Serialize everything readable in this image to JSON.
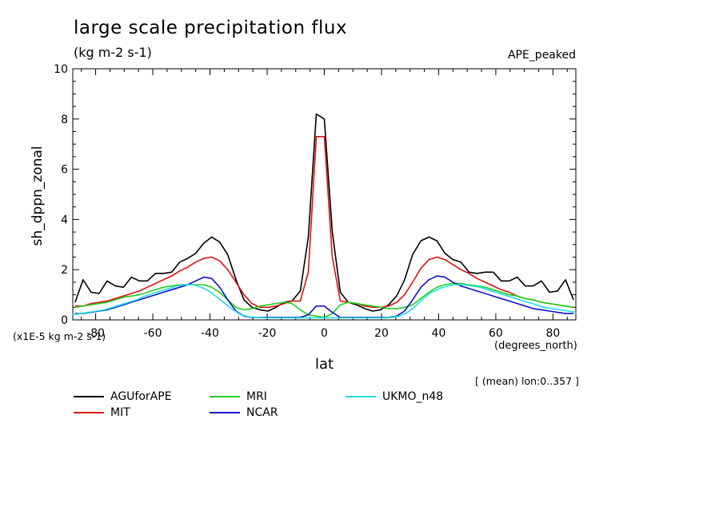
{
  "chart_data": {
    "type": "line",
    "title": "large scale precipitation flux",
    "units": "(kg m-2 s-1)",
    "run_label": "APE_peaked",
    "xlabel": "lat",
    "x_unit": "(degrees_north)",
    "ylabel": "sh_dppn_zonal",
    "y_scale_note": "(x1E-5 kg m-2 s-1)",
    "mean_note": "[ (mean) lon:0..357 ]",
    "xlim": [
      -88,
      88
    ],
    "ylim": [
      0,
      10
    ],
    "x_ticks": [
      -80,
      -60,
      -40,
      -20,
      0,
      20,
      40,
      60,
      80
    ],
    "x_tick_labels": [
      "-80",
      "-60",
      "-40",
      "-20",
      "0",
      "20",
      "40",
      "60",
      "80"
    ],
    "y_ticks": [
      0,
      2,
      4,
      6,
      8,
      10
    ],
    "y_tick_labels": [
      "0",
      "2",
      "4",
      "6",
      "8",
      "10"
    ],
    "legend_position": "bottom",
    "series": [
      {
        "name": "AGUforAPE",
        "color": "#000000",
        "x": [
          -87.2,
          -84.4,
          -81.6,
          -78.8,
          -76.0,
          -73.1,
          -70.3,
          -67.5,
          -64.7,
          -61.9,
          -59.1,
          -56.3,
          -53.4,
          -50.6,
          -47.8,
          -45.0,
          -42.2,
          -39.4,
          -36.6,
          -33.8,
          -30.9,
          -28.1,
          -25.3,
          -22.5,
          -19.7,
          -16.9,
          -14.1,
          -11.3,
          -8.4,
          -5.6,
          -2.8,
          0.0,
          2.8,
          5.6,
          8.4,
          11.3,
          14.1,
          16.9,
          19.7,
          22.5,
          25.3,
          28.1,
          30.9,
          33.8,
          36.6,
          39.4,
          42.2,
          45.0,
          47.8,
          50.6,
          53.4,
          56.3,
          59.1,
          61.9,
          64.7,
          67.5,
          70.3,
          73.1,
          76.0,
          78.8,
          81.6,
          84.4,
          87.2
        ],
        "values": [
          0.7,
          1.6,
          1.1,
          1.05,
          1.55,
          1.35,
          1.3,
          1.7,
          1.55,
          1.55,
          1.85,
          1.85,
          1.9,
          2.3,
          2.45,
          2.65,
          3.05,
          3.3,
          3.1,
          2.6,
          1.6,
          0.8,
          0.5,
          0.4,
          0.35,
          0.5,
          0.7,
          0.75,
          1.15,
          3.3,
          8.2,
          8.0,
          3.5,
          1.1,
          0.7,
          0.6,
          0.45,
          0.35,
          0.4,
          0.6,
          0.95,
          1.6,
          2.6,
          3.15,
          3.3,
          3.15,
          2.65,
          2.4,
          2.3,
          1.9,
          1.85,
          1.9,
          1.9,
          1.55,
          1.55,
          1.7,
          1.35,
          1.35,
          1.55,
          1.1,
          1.15,
          1.6,
          0.8
        ]
      },
      {
        "name": "MIT",
        "color": "#e01010",
        "x": [
          -87.2,
          -84.4,
          -81.6,
          -78.8,
          -76.0,
          -73.1,
          -70.3,
          -67.5,
          -64.7,
          -61.9,
          -59.1,
          -56.3,
          -53.4,
          -50.6,
          -47.8,
          -45.0,
          -42.2,
          -39.4,
          -36.6,
          -33.8,
          -30.9,
          -28.1,
          -25.3,
          -22.5,
          -19.7,
          -16.9,
          -14.1,
          -11.3,
          -8.4,
          -5.6,
          -2.8,
          0.0,
          2.8,
          5.6,
          8.4,
          11.3,
          14.1,
          16.9,
          19.7,
          22.5,
          25.3,
          28.1,
          30.9,
          33.8,
          36.6,
          39.4,
          42.2,
          45.0,
          47.8,
          50.6,
          53.4,
          56.3,
          59.1,
          61.9,
          64.7,
          67.5,
          70.3,
          73.1,
          76.0,
          78.8,
          81.6,
          84.4,
          87.2
        ],
        "values": [
          0.55,
          0.55,
          0.65,
          0.7,
          0.75,
          0.85,
          0.95,
          1.05,
          1.15,
          1.3,
          1.45,
          1.6,
          1.75,
          1.95,
          2.1,
          2.3,
          2.45,
          2.5,
          2.35,
          2.0,
          1.5,
          1.0,
          0.65,
          0.5,
          0.5,
          0.55,
          0.65,
          0.75,
          0.75,
          1.9,
          7.3,
          7.3,
          2.5,
          0.75,
          0.7,
          0.65,
          0.55,
          0.5,
          0.5,
          0.55,
          0.7,
          1.0,
          1.5,
          2.05,
          2.4,
          2.5,
          2.4,
          2.2,
          2.0,
          1.85,
          1.65,
          1.5,
          1.35,
          1.2,
          1.1,
          0.95,
          0.85,
          0.8,
          0.7,
          0.65,
          0.6,
          0.55,
          0.5
        ]
      },
      {
        "name": "MRI",
        "color": "#20d020",
        "x": [
          -87.2,
          -84.4,
          -81.6,
          -78.8,
          -76.0,
          -73.1,
          -70.3,
          -67.5,
          -64.7,
          -61.9,
          -59.1,
          -56.3,
          -53.4,
          -50.6,
          -47.8,
          -45.0,
          -42.2,
          -39.4,
          -36.6,
          -33.8,
          -30.9,
          -28.1,
          -25.3,
          -22.5,
          -19.7,
          -16.9,
          -14.1,
          -11.3,
          -8.4,
          -5.6,
          -2.8,
          0.0,
          2.8,
          5.6,
          8.4,
          11.3,
          14.1,
          16.9,
          19.7,
          22.5,
          25.3,
          28.1,
          30.9,
          33.8,
          36.6,
          39.4,
          42.2,
          45.0,
          47.8,
          50.6,
          53.4,
          56.3,
          59.1,
          61.9,
          64.7,
          67.5,
          70.3,
          73.1,
          76.0,
          78.8,
          81.6,
          84.4,
          87.2
        ],
        "values": [
          0.5,
          0.55,
          0.6,
          0.65,
          0.7,
          0.8,
          0.9,
          0.95,
          1.0,
          1.1,
          1.2,
          1.3,
          1.35,
          1.4,
          1.4,
          1.4,
          1.4,
          1.3,
          1.1,
          0.8,
          0.5,
          0.4,
          0.45,
          0.55,
          0.6,
          0.65,
          0.7,
          0.65,
          0.4,
          0.2,
          0.15,
          0.1,
          0.25,
          0.6,
          0.7,
          0.65,
          0.6,
          0.55,
          0.5,
          0.45,
          0.45,
          0.5,
          0.6,
          0.85,
          1.1,
          1.3,
          1.4,
          1.45,
          1.45,
          1.4,
          1.35,
          1.3,
          1.2,
          1.1,
          1.0,
          0.95,
          0.85,
          0.8,
          0.7,
          0.65,
          0.6,
          0.55,
          0.5
        ]
      },
      {
        "name": "NCAR",
        "color": "#1010c8",
        "x": [
          -87.2,
          -84.4,
          -81.6,
          -78.8,
          -76.0,
          -73.1,
          -70.3,
          -67.5,
          -64.7,
          -61.9,
          -59.1,
          -56.3,
          -53.4,
          -50.6,
          -47.8,
          -45.0,
          -42.2,
          -39.4,
          -36.6,
          -33.8,
          -30.9,
          -28.1,
          -25.3,
          -22.5,
          -19.7,
          -16.9,
          -14.1,
          -11.3,
          -8.4,
          -5.6,
          -2.8,
          0.0,
          2.8,
          5.6,
          8.4,
          11.3,
          14.1,
          16.9,
          19.7,
          22.5,
          25.3,
          28.1,
          30.9,
          33.8,
          36.6,
          39.4,
          42.2,
          45.0,
          47.8,
          50.6,
          53.4,
          56.3,
          59.1,
          61.9,
          64.7,
          67.5,
          70.3,
          73.1,
          76.0,
          78.8,
          81.6,
          84.4,
          87.2
        ],
        "values": [
          0.25,
          0.25,
          0.3,
          0.35,
          0.4,
          0.5,
          0.6,
          0.7,
          0.8,
          0.9,
          1.0,
          1.1,
          1.2,
          1.3,
          1.4,
          1.55,
          1.7,
          1.65,
          1.3,
          0.8,
          0.35,
          0.15,
          0.1,
          0.1,
          0.1,
          0.1,
          0.1,
          0.1,
          0.1,
          0.2,
          0.55,
          0.55,
          0.3,
          0.1,
          0.1,
          0.1,
          0.1,
          0.1,
          0.1,
          0.1,
          0.15,
          0.35,
          0.8,
          1.3,
          1.6,
          1.75,
          1.7,
          1.5,
          1.35,
          1.25,
          1.15,
          1.05,
          0.95,
          0.85,
          0.75,
          0.65,
          0.55,
          0.45,
          0.4,
          0.35,
          0.3,
          0.25,
          0.25
        ]
      },
      {
        "name": "UKMO_n48",
        "color": "#20e0e8",
        "x": [
          -88.1,
          -85.3,
          -82.5,
          -79.7,
          -76.9,
          -74.1,
          -71.3,
          -68.4,
          -65.6,
          -62.8,
          -60.0,
          -57.2,
          -54.4,
          -51.6,
          -48.8,
          -45.9,
          -43.1,
          -40.3,
          -37.5,
          -34.7,
          -31.9,
          -29.1,
          -26.3,
          -23.4,
          -20.6,
          -17.8,
          -15.0,
          -12.2,
          -9.4,
          -6.6,
          -3.8,
          -0.9,
          0.9,
          3.8,
          6.6,
          9.4,
          12.2,
          15.0,
          17.8,
          20.6,
          23.4,
          26.3,
          29.1,
          31.9,
          34.7,
          37.5,
          40.3,
          43.1,
          45.9,
          48.8,
          51.6,
          54.4,
          57.2,
          60.0,
          62.8,
          65.6,
          68.4,
          71.3,
          74.1,
          76.9,
          79.7,
          82.5,
          85.3,
          88.1
        ],
        "values": [
          0.2,
          0.25,
          0.3,
          0.35,
          0.4,
          0.5,
          0.6,
          0.7,
          0.8,
          0.95,
          1.05,
          1.15,
          1.25,
          1.35,
          1.4,
          1.4,
          1.3,
          1.15,
          0.9,
          0.65,
          0.4,
          0.2,
          0.12,
          0.1,
          0.08,
          0.08,
          0.08,
          0.08,
          0.08,
          0.08,
          0.08,
          0.08,
          0.08,
          0.08,
          0.08,
          0.08,
          0.08,
          0.08,
          0.08,
          0.08,
          0.1,
          0.15,
          0.3,
          0.55,
          0.85,
          1.1,
          1.25,
          1.35,
          1.4,
          1.4,
          1.35,
          1.3,
          1.2,
          1.1,
          1.0,
          0.9,
          0.8,
          0.7,
          0.6,
          0.5,
          0.45,
          0.4,
          0.35,
          0.3
        ]
      }
    ]
  }
}
